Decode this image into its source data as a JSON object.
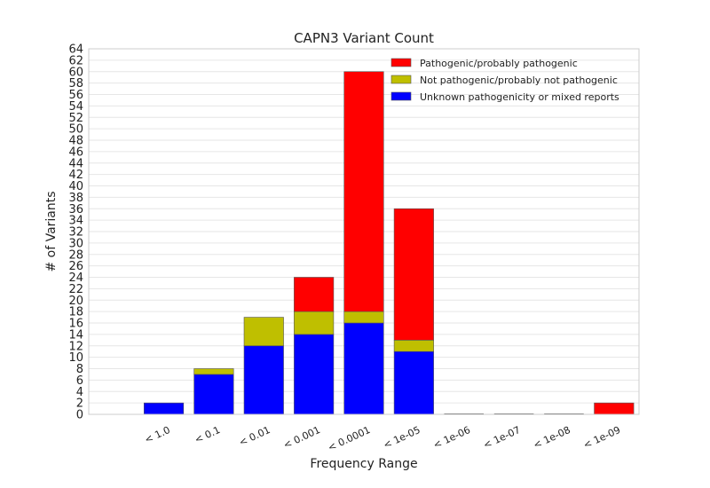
{
  "chart_data": {
    "type": "bar",
    "stacked": true,
    "title": "CAPN3 Variant Count",
    "xlabel": "Frequency Range",
    "ylabel": "# of Variants",
    "ylim": [
      0,
      64
    ],
    "ytick_step": 2,
    "grid": true,
    "legend_position": "top-right",
    "categories": [
      "",
      "< 1.0",
      "< 0.1",
      "< 0.01",
      "< 0.001",
      "< 0.0001",
      "< 1e-05",
      "< 1e-06",
      "< 1e-07",
      "< 1e-08",
      "< 1e-09"
    ],
    "series": [
      {
        "name": "Unknown pathogenicity or mixed reports",
        "color": "#0000ff",
        "values": [
          0,
          2,
          7,
          12,
          14,
          16,
          11,
          0,
          0,
          0,
          0
        ]
      },
      {
        "name": "Not pathogenic/probably not pathogenic",
        "color": "#bfbf00",
        "values": [
          0,
          0,
          1,
          5,
          4,
          2,
          2,
          0,
          0,
          0,
          0
        ]
      },
      {
        "name": "Pathogenic/probably pathogenic",
        "color": "#ff0000",
        "values": [
          0,
          0,
          0,
          0,
          6,
          42,
          23,
          0,
          0,
          0,
          2
        ]
      }
    ],
    "legend_order": [
      2,
      1,
      0
    ]
  }
}
